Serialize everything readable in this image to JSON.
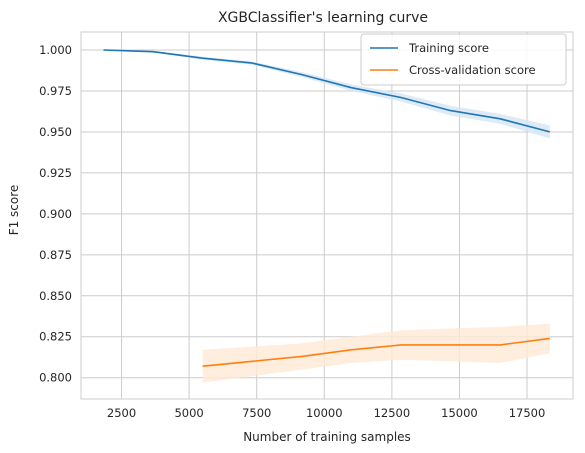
{
  "chart_data": {
    "type": "line",
    "title": "XGBClassifier's learning curve",
    "xlabel": "Number of training samples",
    "ylabel": "F1 score",
    "xlim": [
      1000,
      19200
    ],
    "ylim": [
      0.787,
      1.011
    ],
    "xticks": [
      2500,
      5000,
      7500,
      10000,
      12500,
      15000,
      17500
    ],
    "xtick_labels": [
      "2500",
      "5000",
      "7500",
      "10000",
      "12500",
      "15000",
      "17500"
    ],
    "yticks": [
      0.8,
      0.825,
      0.85,
      0.875,
      0.9,
      0.925,
      0.95,
      0.975,
      1.0
    ],
    "ytick_labels": [
      "0.800",
      "0.825",
      "0.850",
      "0.875",
      "0.900",
      "0.925",
      "0.950",
      "0.975",
      "1.000"
    ],
    "grid": true,
    "legend_position": "top-right",
    "series": [
      {
        "name": "Training score",
        "color": "#1f77b4",
        "band_color": "#d6e6f5",
        "x": [
          1834,
          3668,
          5502,
          7336,
          9170,
          11004,
          12838,
          14672,
          16506,
          18340
        ],
        "values": [
          1.0,
          0.999,
          0.995,
          0.992,
          0.985,
          0.977,
          0.971,
          0.963,
          0.958,
          0.95
        ],
        "band": [
          0.0,
          0.0005,
          0.001,
          0.001,
          0.0015,
          0.002,
          0.0025,
          0.003,
          0.003,
          0.004
        ]
      },
      {
        "name": "Cross-validation score",
        "color": "#ff7f0e",
        "band_color": "#ffe8d6",
        "x": [
          5502,
          7336,
          9170,
          11004,
          12838,
          14672,
          16506,
          18340
        ],
        "values": [
          0.807,
          0.81,
          0.813,
          0.817,
          0.82,
          0.82,
          0.82,
          0.824
        ],
        "band": [
          0.01,
          0.009,
          0.008,
          0.008,
          0.009,
          0.01,
          0.011,
          0.009
        ]
      }
    ]
  }
}
